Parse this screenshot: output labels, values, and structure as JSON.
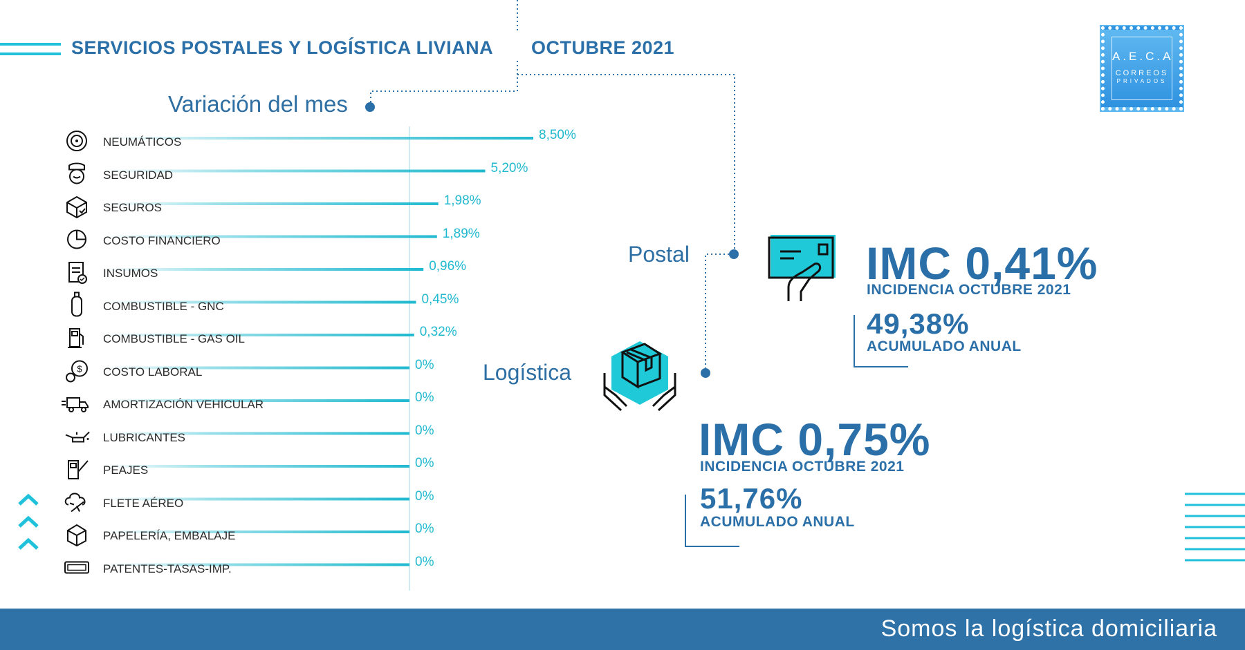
{
  "header": {
    "title": "SERVICIOS POSTALES Y LOGÍSTICA LIVIANA",
    "month": "OCTUBRE 2021"
  },
  "logo": {
    "line1": "A.E.C.A",
    "line2": "CORREOS",
    "line3": "PRIVADOS"
  },
  "chart_data": {
    "type": "bar",
    "orientation": "horizontal",
    "title": "Variación del mes",
    "categories": [
      "NEUMÁTICOS",
      "SEGURIDAD",
      "SEGUROS",
      "COSTO FINANCIERO",
      "INSUMOS",
      "COMBUSTIBLE - GNC",
      "COMBUSTIBLE - GAS OIL",
      "COSTO LABORAL",
      "AMORTIZACIÓN VEHICULAR",
      "LUBRICANTES",
      "PEAJES",
      "FLETE AÉREO",
      "PAPELERÍA, EMBALAJE",
      "PATENTES-TASAS-IMP."
    ],
    "values": [
      8.5,
      5.2,
      1.98,
      1.89,
      0.96,
      0.45,
      0.32,
      0,
      0,
      0,
      0,
      0,
      0,
      0
    ],
    "value_labels": [
      "8,50%",
      "5,20%",
      "1,98%",
      "1,89%",
      "0,96%",
      "0,45%",
      "0,32%",
      "0%",
      "0%",
      "0%",
      "0%",
      "0%",
      "0%",
      "0%"
    ],
    "icons": [
      "tire-icon",
      "security-guard-icon",
      "insurance-box-icon",
      "pie-chart-icon",
      "clipboard-icon",
      "gas-cylinder-icon",
      "fuel-pump-icon",
      "money-bag-icon",
      "truck-icon",
      "oil-can-icon",
      "toll-booth-icon",
      "airplane-cloud-icon",
      "package-icon",
      "license-plate-icon"
    ],
    "xlim": [
      0,
      8.5
    ],
    "grid": false,
    "accent_color": "#1fb9cf"
  },
  "postal": {
    "label": "Postal",
    "imc": "IMC 0,41%",
    "incidence": "INCIDENCIA OCTUBRE 2021",
    "accumulated_value": "49,38%",
    "accumulated_label": "ACUMULADO ANUAL"
  },
  "logistica": {
    "label": "Logística",
    "imc": "IMC 0,75%",
    "incidence": "INCIDENCIA OCTUBRE 2021",
    "accumulated_value": "51,76%",
    "accumulated_label": "ACUMULADO ANUAL"
  },
  "footer": {
    "slogan": "Somos la logística domiciliaria"
  },
  "colors": {
    "primary": "#2a6fa8",
    "accent": "#1fb9cf",
    "footer": "#2e72a7"
  }
}
